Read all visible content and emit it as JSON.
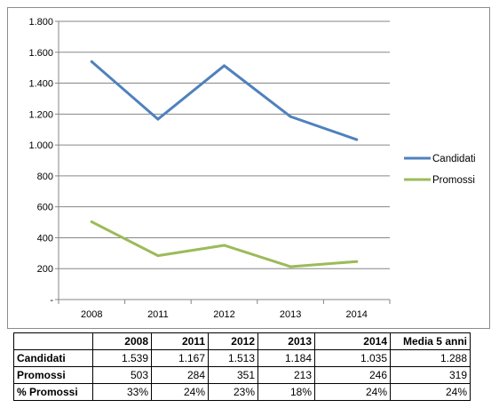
{
  "chart_data": {
    "type": "line",
    "categories": [
      "2008",
      "2011",
      "2012",
      "2013",
      "2014"
    ],
    "series": [
      {
        "name": "Candidati",
        "values": [
          1539,
          1167,
          1513,
          1184,
          1035
        ],
        "color": "#4f81bd"
      },
      {
        "name": "Promossi",
        "values": [
          503,
          284,
          351,
          213,
          246
        ],
        "color": "#9bbb59"
      }
    ],
    "ylim": [
      0,
      1800
    ],
    "yticks": [
      "-",
      "200",
      "400",
      "600",
      "800",
      "1.000",
      "1.200",
      "1.400",
      "1.600",
      "1.800"
    ],
    "grid": true,
    "legend_position": "right"
  },
  "table": {
    "headers": [
      "",
      "2008",
      "2011",
      "2012",
      "2013",
      "2014",
      "Media 5 anni"
    ],
    "rows": [
      {
        "label": "Candidati",
        "cells": [
          "1.539",
          "1.167",
          "1.513",
          "1.184",
          "1.035",
          "1.288"
        ]
      },
      {
        "label": "Promossi",
        "cells": [
          "503",
          "284",
          "351",
          "213",
          "246",
          "319"
        ]
      },
      {
        "label": "% Promossi",
        "cells": [
          "33%",
          "24%",
          "23%",
          "18%",
          "24%",
          "24%"
        ]
      }
    ]
  }
}
